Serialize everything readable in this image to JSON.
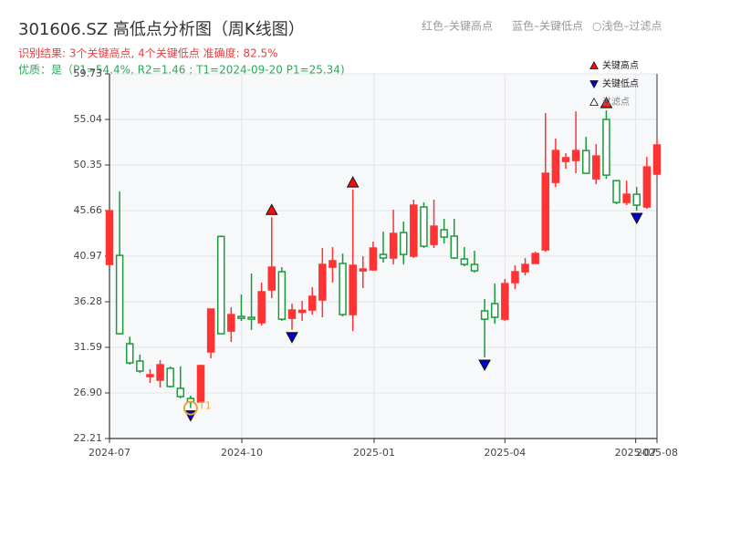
{
  "chart_data": {
    "type": "candlestick",
    "title": "301606.SZ 高低点分析图（周K线图）",
    "subtitle": "识别结果: 3个关键高点, 4个关键低点  准确度: 82.5%",
    "quality_note": "优质：是（P1=54.4%, R2=1.46 ; T1=2024-09-20 P1=25.34)",
    "header_notes": [
      "红色–关键高点",
      "蓝色–关键低点",
      "○浅色–过滤点"
    ],
    "categories": [
      null,
      null,
      null,
      null,
      null,
      null,
      null,
      null,
      null,
      null,
      null,
      null,
      null,
      null,
      null,
      null,
      null,
      null,
      null,
      null,
      null,
      null,
      null,
      null,
      null,
      null,
      null,
      null,
      null,
      null,
      null,
      null,
      null,
      null,
      null,
      null,
      null,
      null,
      null,
      null,
      null,
      null,
      null,
      null,
      null,
      null,
      null,
      null,
      null,
      null,
      null,
      null,
      null,
      null,
      null
    ],
    "open": [
      40.12,
      41.05,
      31.96,
      30.18,
      28.58,
      28.21,
      29.43,
      27.37,
      26.33,
      25.96,
      31.12,
      43.0,
      33.27,
      34.77,
      34.68,
      34.12,
      37.5,
      39.37,
      34.58,
      35.2,
      35.43,
      36.46,
      39.84,
      40.22,
      34.96,
      39.46,
      39.56,
      41.15,
      40.78,
      43.4,
      40.97,
      46.03,
      42.18,
      43.69,
      43.03,
      40.68,
      40.12,
      35.34,
      36.09,
      34.49,
      38.25,
      39.37,
      40.22,
      41.62,
      48.56,
      50.72,
      50.81,
      51.84,
      48.93,
      55.04,
      48.74,
      46.5,
      47.34,
      46.03,
      49.41
    ],
    "high": [
      45.8,
      47.62,
      32.7,
      30.84,
      29.34,
      30.27,
      29.62,
      29.62,
      26.62,
      29.81,
      35.53,
      43.1,
      35.71,
      37.03,
      39.18,
      38.25,
      44.98,
      39.84,
      36.09,
      36.37,
      37.78,
      41.81,
      41.9,
      41.24,
      47.81,
      40.97,
      42.47,
      43.5,
      45.75,
      44.53,
      46.78,
      46.5,
      46.78,
      44.81,
      44.81,
      41.9,
      41.53,
      36.56,
      38.15,
      38.62,
      40.03,
      40.78,
      41.43,
      55.69,
      53.06,
      51.56,
      55.87,
      53.25,
      52.5,
      55.97,
      48.74,
      48.74,
      48.09,
      51.18,
      53.06
    ],
    "low": [
      40.0,
      32.9,
      29.8,
      28.96,
      27.93,
      27.46,
      27.46,
      26.34,
      25.34,
      25.96,
      30.46,
      32.99,
      32.15,
      34.3,
      33.37,
      33.84,
      36.65,
      34.3,
      33.4,
      34.3,
      34.96,
      34.68,
      38.25,
      34.77,
      33.27,
      37.68,
      39.46,
      40.31,
      40.12,
      40.12,
      40.78,
      41.81,
      41.81,
      42.28,
      40.68,
      39.93,
      39.28,
      30.56,
      34.02,
      34.3,
      37.59,
      38.99,
      40.22,
      41.43,
      48.09,
      49.97,
      49.5,
      49.5,
      48.37,
      48.93,
      46.31,
      46.22,
      45.66,
      45.84,
      49.12
    ],
    "close": [
      45.65,
      32.99,
      29.99,
      29.15,
      28.77,
      29.8,
      27.56,
      26.52,
      25.96,
      29.71,
      35.53,
      32.99,
      34.96,
      34.58,
      34.49,
      37.31,
      39.84,
      34.49,
      35.43,
      35.4,
      36.84,
      40.12,
      40.5,
      34.96,
      40.03,
      39.65,
      41.81,
      40.78,
      43.31,
      41.15,
      46.22,
      41.99,
      44.06,
      42.93,
      40.78,
      40.12,
      39.46,
      34.49,
      34.68,
      38.15,
      39.37,
      40.12,
      41.24,
      49.5,
      51.84,
      51.1,
      51.84,
      49.5,
      51.28,
      49.31,
      46.5,
      47.34,
      46.22,
      50.15,
      52.41
    ],
    "up_color": "#ff3333",
    "down_color": "#1a9a3a",
    "markers": [
      {
        "name": "关键高点",
        "color": "#ee1111",
        "shape": "up",
        "values": [
          null,
          null,
          null,
          null,
          null,
          null,
          null,
          null,
          null,
          null,
          null,
          null,
          null,
          null,
          null,
          null,
          44.98,
          null,
          null,
          null,
          null,
          null,
          null,
          null,
          47.81,
          null,
          null,
          null,
          null,
          null,
          null,
          null,
          null,
          null,
          null,
          null,
          null,
          null,
          null,
          null,
          null,
          null,
          null,
          null,
          null,
          null,
          null,
          null,
          null,
          55.97,
          null,
          null,
          null,
          null,
          null
        ]
      },
      {
        "name": "关键低点",
        "color": "#0000cc",
        "shape": "down",
        "values": [
          null,
          null,
          null,
          null,
          null,
          null,
          null,
          null,
          25.34,
          null,
          null,
          null,
          null,
          null,
          null,
          null,
          null,
          null,
          33.4,
          null,
          null,
          null,
          null,
          null,
          null,
          null,
          null,
          null,
          null,
          null,
          null,
          null,
          null,
          null,
          null,
          null,
          null,
          30.56,
          null,
          null,
          null,
          null,
          null,
          null,
          null,
          null,
          null,
          null,
          null,
          null,
          null,
          null,
          45.66,
          null,
          null
        ]
      },
      {
        "name": "过滤点",
        "color": "#ffffff",
        "shape": "up"
      }
    ],
    "annotations": [
      {
        "text": "T1",
        "x": 8,
        "y": 25.34,
        "color": "#f0a030"
      }
    ],
    "xlim": [
      0,
      54
    ],
    "xticks": [
      {
        "value": 0,
        "label": "2024-07"
      },
      {
        "value": 13.05,
        "label": "2024-10"
      },
      {
        "value": 26.1,
        "label": "2025-01"
      },
      {
        "value": 39.0,
        "label": "2025-04"
      },
      {
        "value": 51.9,
        "label": "2025-07"
      },
      {
        "value": 54,
        "label": "2025-08"
      }
    ],
    "ylim": [
      22.21,
      59.73
    ],
    "yticks": [
      22.21,
      {
        "value": 26.9,
        "label": "26.90"
      },
      31.59,
      36.28,
      40.97,
      45.66,
      50.35,
      55.04,
      59.73
    ],
    "grid": true
  }
}
